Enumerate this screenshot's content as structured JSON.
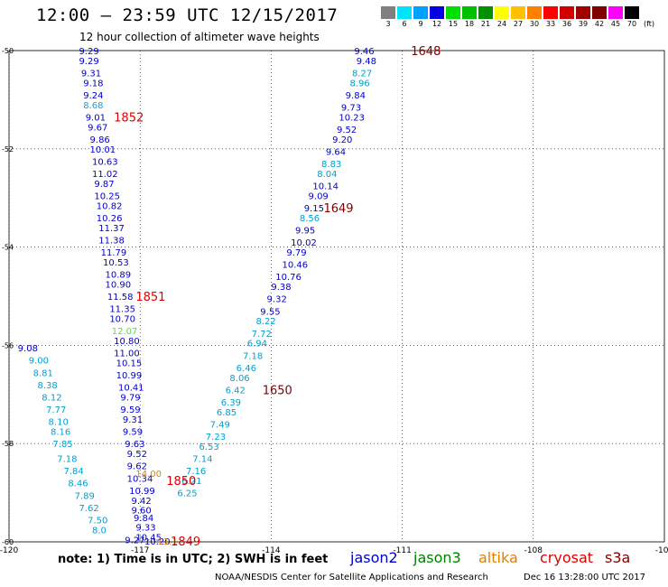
{
  "header": {
    "title": "12:00 — 23:59 UTC 12/15/2017",
    "subtitle": "12 hour collection of altimeter wave heights"
  },
  "colorbar": {
    "labels": [
      "3",
      "6",
      "9",
      "12",
      "15",
      "18",
      "21",
      "24",
      "27",
      "30",
      "33",
      "36",
      "39",
      "42",
      "45",
      "70"
    ],
    "colors": [
      "#808080",
      "#00e5ff",
      "#00a0ff",
      "#0000e0",
      "#00e000",
      "#00c000",
      "#009000",
      "#ffff00",
      "#ffc000",
      "#ff8000",
      "#ff0000",
      "#d00000",
      "#a00000",
      "#800000",
      "#ff00ff",
      "#000000"
    ],
    "unit": "(ft)"
  },
  "chart_data": {
    "type": "scatter",
    "title": "12 hour collection of altimeter wave heights",
    "xlabel": "",
    "ylabel": "",
    "xlim": [
      -120,
      -105
    ],
    "ylim": [
      -60,
      -50
    ],
    "xticks": [
      -120,
      -117,
      -114,
      -111,
      -108,
      -105
    ],
    "xtick_labels": [
      "-120",
      "-117",
      "-114",
      "-111",
      "-108",
      "-105"
    ],
    "yticks": [
      -50,
      -52,
      -54,
      -56,
      -58,
      -60
    ],
    "ytick_labels": [
      "-50",
      "-52",
      "-54",
      "-56",
      "-58",
      "-60"
    ],
    "grid": true,
    "series": [
      {
        "name": "jason2",
        "color": "#0000c8",
        "points": [
          {
            "lon": -118.4,
            "lat": -50.0,
            "swh": "9.29"
          },
          {
            "lon": -118.4,
            "lat": -50.2,
            "swh": "9.29"
          },
          {
            "lon": -118.35,
            "lat": -50.45,
            "swh": "9.31"
          },
          {
            "lon": -118.3,
            "lat": -50.65,
            "swh": "9.18"
          },
          {
            "lon": -118.3,
            "lat": -50.9,
            "swh": "9.24"
          },
          {
            "lon": -118.3,
            "lat": -51.1,
            "swh": "8.68",
            "color": "#00a8e8"
          },
          {
            "lon": -118.25,
            "lat": -51.35,
            "swh": "9.01"
          },
          {
            "lon": -118.2,
            "lat": -51.55,
            "swh": "9.67"
          },
          {
            "lon": -118.15,
            "lat": -51.8,
            "swh": "9.86"
          },
          {
            "lon": -118.15,
            "lat": -52.0,
            "swh": "10.01"
          },
          {
            "lon": -118.1,
            "lat": -52.25,
            "swh": "10.63"
          },
          {
            "lon": -118.1,
            "lat": -52.5,
            "swh": "11.02"
          },
          {
            "lon": -118.05,
            "lat": -52.7,
            "swh": "9.87"
          },
          {
            "lon": -118.05,
            "lat": -52.95,
            "swh": "10.25"
          },
          {
            "lon": -118.0,
            "lat": -53.15,
            "swh": "10.82"
          },
          {
            "lon": -118.0,
            "lat": -53.4,
            "swh": "10.26"
          },
          {
            "lon": -117.95,
            "lat": -53.6,
            "swh": "11.37"
          },
          {
            "lon": -117.95,
            "lat": -53.85,
            "swh": "11.38"
          },
          {
            "lon": -117.9,
            "lat": -54.1,
            "swh": "11.79"
          },
          {
            "lon": -117.85,
            "lat": -54.3,
            "swh": "10.53"
          },
          {
            "lon": -117.8,
            "lat": -54.55,
            "swh": "10.89"
          },
          {
            "lon": -117.8,
            "lat": -54.75,
            "swh": "10.90"
          },
          {
            "lon": -117.75,
            "lat": -55.0,
            "swh": "11.58"
          },
          {
            "lon": -117.7,
            "lat": -55.25,
            "swh": "11.35"
          },
          {
            "lon": -117.7,
            "lat": -55.45,
            "swh": "10.70"
          },
          {
            "lon": -117.65,
            "lat": -55.7,
            "swh": "12.07",
            "color": "#50e050"
          },
          {
            "lon": -117.6,
            "lat": -55.9,
            "swh": "10.80"
          },
          {
            "lon": -117.6,
            "lat": -56.15,
            "swh": "11.00"
          },
          {
            "lon": -117.55,
            "lat": -56.35,
            "swh": "10.15"
          },
          {
            "lon": -117.55,
            "lat": -56.6,
            "swh": "10.99"
          },
          {
            "lon": -117.5,
            "lat": -56.85,
            "swh": "10.41"
          },
          {
            "lon": -117.45,
            "lat": -57.05,
            "swh": "9.79"
          },
          {
            "lon": -117.45,
            "lat": -57.3,
            "swh": "9.59"
          },
          {
            "lon": -117.4,
            "lat": -57.5,
            "swh": "9.31"
          },
          {
            "lon": -117.4,
            "lat": -57.75,
            "swh": "9.59"
          },
          {
            "lon": -117.35,
            "lat": -58.0,
            "swh": "9.63"
          },
          {
            "lon": -117.3,
            "lat": -58.2,
            "swh": "9.52"
          },
          {
            "lon": -117.3,
            "lat": -58.45,
            "swh": "9.62"
          },
          {
            "lon": -117.3,
            "lat": -58.7,
            "swh": "10.34"
          },
          {
            "lon": -117.25,
            "lat": -58.95,
            "swh": "10.99"
          },
          {
            "lon": -117.2,
            "lat": -59.15,
            "swh": "9.42"
          },
          {
            "lon": -117.2,
            "lat": -59.35,
            "swh": "9.60"
          },
          {
            "lon": -117.15,
            "lat": -59.5,
            "swh": "9.84"
          },
          {
            "lon": -117.1,
            "lat": -59.7,
            "swh": "9.33"
          },
          {
            "lon": -117.1,
            "lat": -59.9,
            "swh": "10.45"
          },
          {
            "lon": -117.35,
            "lat": -59.95,
            "swh": "9.27"
          },
          {
            "lon": -116.9,
            "lat": -59.98,
            "swh": "10.20"
          }
        ],
        "track_labels": [
          {
            "lon": -117.6,
            "lat": -51.35,
            "text": "1852",
            "color": "#e00000"
          },
          {
            "lon": -117.1,
            "lat": -55.0,
            "text": "1851",
            "color": "#e00000"
          }
        ]
      },
      {
        "name": "jason3",
        "color": "#00a0d0",
        "points": [
          {
            "lon": -119.8,
            "lat": -56.05,
            "swh": "9.08",
            "color": "#0000c8"
          },
          {
            "lon": -119.55,
            "lat": -56.3,
            "swh": "9.00"
          },
          {
            "lon": -119.45,
            "lat": -56.55,
            "swh": "8.81"
          },
          {
            "lon": -119.35,
            "lat": -56.8,
            "swh": "8.38"
          },
          {
            "lon": -119.25,
            "lat": -57.05,
            "swh": "8.12"
          },
          {
            "lon": -119.15,
            "lat": -57.3,
            "swh": "7.77"
          },
          {
            "lon": -119.1,
            "lat": -57.55,
            "swh": "8.10"
          },
          {
            "lon": -119.05,
            "lat": -57.75,
            "swh": "8.16"
          },
          {
            "lon": -119.0,
            "lat": -58.0,
            "swh": "7.85"
          },
          {
            "lon": -118.9,
            "lat": -58.3,
            "swh": "7.18"
          },
          {
            "lon": -118.75,
            "lat": -58.55,
            "swh": "7.84"
          },
          {
            "lon": -118.65,
            "lat": -58.8,
            "swh": "8.46"
          },
          {
            "lon": -118.5,
            "lat": -59.05,
            "swh": "7.89"
          },
          {
            "lon": -118.4,
            "lat": -59.3,
            "swh": "7.62"
          },
          {
            "lon": -118.2,
            "lat": -59.55,
            "swh": "7.50"
          },
          {
            "lon": -118.1,
            "lat": -59.75,
            "swh": "8.0"
          },
          {
            "lon": -112.1,
            "lat": -50.0,
            "swh": "9.46",
            "color": "#0000c8"
          },
          {
            "lon": -112.05,
            "lat": -50.2,
            "swh": "9.48",
            "color": "#0000c8"
          },
          {
            "lon": -112.15,
            "lat": -50.45,
            "swh": "8.27"
          },
          {
            "lon": -112.2,
            "lat": -50.65,
            "swh": "8.96"
          },
          {
            "lon": -112.3,
            "lat": -50.9,
            "swh": "9.84",
            "color": "#0000c8"
          },
          {
            "lon": -112.4,
            "lat": -51.15,
            "swh": "9.73",
            "color": "#0000c8"
          },
          {
            "lon": -112.45,
            "lat": -51.35,
            "swh": "10.23",
            "color": "#0000c8"
          },
          {
            "lon": -112.5,
            "lat": -51.6,
            "swh": "9.52",
            "color": "#0000c8"
          },
          {
            "lon": -112.6,
            "lat": -51.8,
            "swh": "9.20",
            "color": "#0000c8"
          },
          {
            "lon": -112.75,
            "lat": -52.05,
            "swh": "9.64",
            "color": "#0000c8"
          },
          {
            "lon": -112.85,
            "lat": -52.3,
            "swh": "8.83"
          },
          {
            "lon": -112.95,
            "lat": -52.5,
            "swh": "8.04"
          },
          {
            "lon": -113.05,
            "lat": -52.75,
            "swh": "10.14",
            "color": "#0000c8"
          },
          {
            "lon": -113.15,
            "lat": -52.95,
            "swh": "9.09",
            "color": "#0000c8"
          },
          {
            "lon": -113.25,
            "lat": -53.2,
            "swh": "9.15",
            "color": "#0000c8"
          },
          {
            "lon": -113.35,
            "lat": -53.4,
            "swh": "8.56"
          },
          {
            "lon": -113.45,
            "lat": -53.65,
            "swh": "9.95",
            "color": "#0000c8"
          },
          {
            "lon": -113.55,
            "lat": -53.9,
            "swh": "10.02",
            "color": "#0000c8"
          },
          {
            "lon": -113.65,
            "lat": -54.1,
            "swh": "9.79",
            "color": "#0000c8"
          },
          {
            "lon": -113.75,
            "lat": -54.35,
            "swh": "10.46",
            "color": "#0000c8"
          },
          {
            "lon": -113.9,
            "lat": -54.6,
            "swh": "10.76",
            "color": "#0000c8"
          },
          {
            "lon": -114.0,
            "lat": -54.8,
            "swh": "9.38",
            "color": "#0000c8"
          },
          {
            "lon": -114.1,
            "lat": -55.05,
            "swh": "9.32",
            "color": "#0000c8"
          },
          {
            "lon": -114.25,
            "lat": -55.3,
            "swh": "9.55",
            "color": "#0000c8"
          },
          {
            "lon": -114.35,
            "lat": -55.5,
            "swh": "8.22"
          },
          {
            "lon": -114.45,
            "lat": -55.75,
            "swh": "7.72"
          },
          {
            "lon": -114.55,
            "lat": -55.95,
            "swh": "6.94"
          },
          {
            "lon": -114.65,
            "lat": -56.2,
            "swh": "7.18"
          },
          {
            "lon": -114.8,
            "lat": -56.45,
            "swh": "6.46"
          },
          {
            "lon": -114.95,
            "lat": -56.65,
            "swh": "8.06"
          },
          {
            "lon": -115.05,
            "lat": -56.9,
            "swh": "6.42"
          },
          {
            "lon": -115.15,
            "lat": -57.15,
            "swh": "6.39"
          },
          {
            "lon": -115.25,
            "lat": -57.35,
            "swh": "6.85"
          },
          {
            "lon": -115.4,
            "lat": -57.6,
            "swh": "7.49"
          },
          {
            "lon": -115.5,
            "lat": -57.85,
            "swh": "7.23"
          },
          {
            "lon": -115.65,
            "lat": -58.05,
            "swh": "6.53"
          },
          {
            "lon": -115.8,
            "lat": -58.3,
            "swh": "7.14"
          },
          {
            "lon": -115.95,
            "lat": -58.55,
            "swh": "7.16"
          },
          {
            "lon": -116.05,
            "lat": -58.75,
            "swh": "6.21"
          },
          {
            "lon": -116.15,
            "lat": -59.0,
            "swh": "6.25"
          }
        ],
        "track_labels": [
          {
            "lon": -110.8,
            "lat": -50.0,
            "text": "1648",
            "color": "#800000"
          },
          {
            "lon": -112.8,
            "lat": -53.2,
            "text": "1649",
            "color": "#800000"
          },
          {
            "lon": -114.2,
            "lat": -56.9,
            "text": "1650",
            "color": "#800000"
          }
        ]
      },
      {
        "name": "altika",
        "color": "#e08000",
        "points": [
          {
            "lon": -117.1,
            "lat": -58.6,
            "swh": "14.00"
          },
          {
            "lon": -116.6,
            "lat": -59.98,
            "swh": "11.1"
          }
        ],
        "track_labels": [
          {
            "lon": -116.4,
            "lat": -58.75,
            "text": "1850",
            "color": "#e00000"
          },
          {
            "lon": -116.3,
            "lat": -59.98,
            "text": "1849",
            "color": "#e00000"
          }
        ]
      }
    ]
  },
  "legend": [
    {
      "name": "jason2",
      "color": "#0000c8"
    },
    {
      "name": "jason3",
      "color": "#008000"
    },
    {
      "name": "altika",
      "color": "#e08000"
    },
    {
      "name": "cryosat",
      "color": "#e00000"
    },
    {
      "name": "s3a",
      "color": "#800000"
    }
  ],
  "note": "note:  1) Time is in UTC;  2) SWH is in feet",
  "footer": {
    "credit": "NOAA/NESDIS Center for Satellite Applications and Research",
    "timestamp": "Dec 16 13:28:00 UTC 2017"
  }
}
